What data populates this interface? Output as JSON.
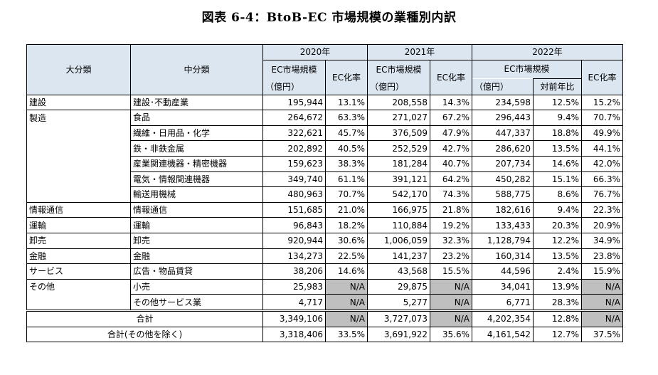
{
  "title": "図表 6-4：BtoB-EC 市場規模の業種別内訳",
  "headers": {
    "major": "大分類",
    "middle": "中分類",
    "y2020": "2020年",
    "y2021": "2021年",
    "y2022": "2022年",
    "ec_size": "EC市場規模",
    "ec_rate": "EC化率",
    "unit": "（億円）",
    "yoy": "対前年比"
  },
  "rows": [
    {
      "major": "建設",
      "middle": "建設･不動産業",
      "v2020": "195,944",
      "r2020": "13.1%",
      "v2021": "208,558",
      "r2021": "14.3%",
      "v2022": "234,598",
      "yoy": "12.5%",
      "r2022": "15.2%"
    },
    {
      "major": "製造",
      "middle": "食品",
      "v2020": "264,672",
      "r2020": "63.3%",
      "v2021": "271,027",
      "r2021": "67.2%",
      "v2022": "296,443",
      "yoy": "9.4%",
      "r2022": "70.7%"
    },
    {
      "major": "",
      "middle": "繊維・日用品・化学",
      "v2020": "322,621",
      "r2020": "45.7%",
      "v2021": "376,509",
      "r2021": "47.9%",
      "v2022": "447,337",
      "yoy": "18.8%",
      "r2022": "49.9%"
    },
    {
      "major": "",
      "middle": "鉄・非鉄金属",
      "v2020": "202,892",
      "r2020": "40.5%",
      "v2021": "252,529",
      "r2021": "42.7%",
      "v2022": "286,620",
      "yoy": "13.5%",
      "r2022": "44.1%"
    },
    {
      "major": "",
      "middle": "産業関連機器・精密機器",
      "v2020": "159,623",
      "r2020": "38.3%",
      "v2021": "181,284",
      "r2021": "40.7%",
      "v2022": "207,734",
      "yoy": "14.6%",
      "r2022": "42.0%"
    },
    {
      "major": "",
      "middle": "電気・情報関連機器",
      "v2020": "349,740",
      "r2020": "61.1%",
      "v2021": "391,121",
      "r2021": "64.2%",
      "v2022": "450,282",
      "yoy": "15.1%",
      "r2022": "66.3%"
    },
    {
      "major": "",
      "middle": "輸送用機械",
      "v2020": "480,963",
      "r2020": "70.7%",
      "v2021": "542,170",
      "r2021": "74.3%",
      "v2022": "588,775",
      "yoy": "8.6%",
      "r2022": "76.7%"
    },
    {
      "major": "情報通信",
      "middle": "情報通信",
      "v2020": "151,685",
      "r2020": "21.0%",
      "v2021": "166,975",
      "r2021": "21.8%",
      "v2022": "182,616",
      "yoy": "9.4%",
      "r2022": "22.3%"
    },
    {
      "major": "運輸",
      "middle": "運輸",
      "v2020": "96,843",
      "r2020": "18.2%",
      "v2021": "110,884",
      "r2021": "19.2%",
      "v2022": "133,433",
      "yoy": "20.3%",
      "r2022": "20.9%"
    },
    {
      "major": "卸売",
      "middle": "卸売",
      "v2020": "920,944",
      "r2020": "30.6%",
      "v2021": "1,006,059",
      "r2021": "32.3%",
      "v2022": "1,128,794",
      "yoy": "12.2%",
      "r2022": "34.9%"
    },
    {
      "major": "金融",
      "middle": "金融",
      "v2020": "134,273",
      "r2020": "22.5%",
      "v2021": "141,237",
      "r2021": "23.2%",
      "v2022": "160,314",
      "yoy": "13.5%",
      "r2022": "23.8%"
    },
    {
      "major": "サービス",
      "middle": "広告・物品賃貸",
      "v2020": "38,206",
      "r2020": "14.6%",
      "v2021": "43,568",
      "r2021": "15.5%",
      "v2022": "44,596",
      "yoy": "2.4%",
      "r2022": "15.9%"
    },
    {
      "major": "その他",
      "middle": "小売",
      "v2020": "25,983",
      "r2020": "N/A",
      "v2021": "29,875",
      "r2021": "N/A",
      "v2022": "34,041",
      "yoy": "13.9%",
      "r2022": "N/A"
    },
    {
      "major": "",
      "middle": "その他サービス業",
      "v2020": "4,717",
      "r2020": "N/A",
      "v2021": "5,277",
      "r2021": "N/A",
      "v2022": "6,771",
      "yoy": "28.3%",
      "r2022": "N/A"
    }
  ],
  "totals": [
    {
      "label": "合計",
      "v2020": "3,349,106",
      "r2020": "N/A",
      "v2021": "3,727,073",
      "r2021": "N/A",
      "v2022": "4,202,354",
      "yoy": "12.8%",
      "r2022": "N/A"
    },
    {
      "label": "合計(その他を除く)",
      "v2020": "3,318,406",
      "r2020": "33.5%",
      "v2021": "3,691,922",
      "r2021": "35.6%",
      "v2022": "4,161,542",
      "yoy": "12.7%",
      "r2022": "37.5%"
    }
  ]
}
